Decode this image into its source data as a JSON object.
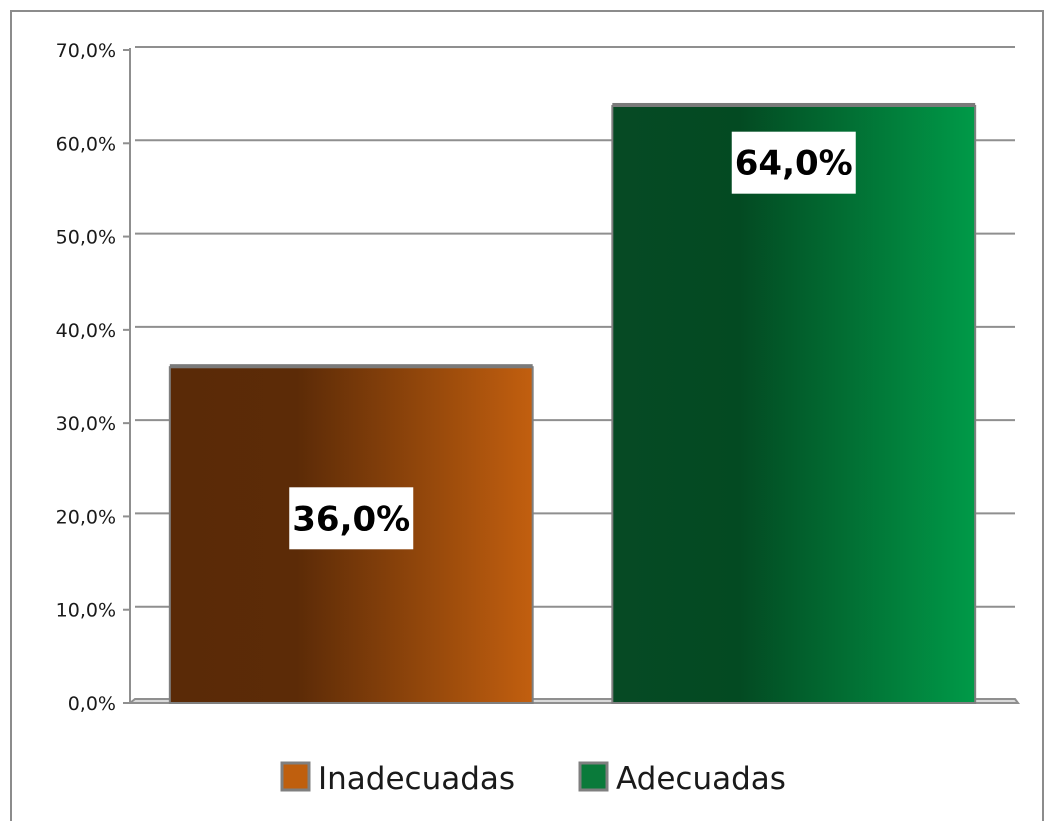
{
  "chart_data": {
    "type": "bar",
    "categories": [
      "Inadecuadas",
      "Adecuadas"
    ],
    "values": [
      36.0,
      64.0
    ],
    "value_labels": [
      "36,0%",
      "64,0%"
    ],
    "colors": [
      "#bf5f0e",
      "#0a7a3a"
    ],
    "ylim": [
      0,
      70
    ],
    "yticks": [
      0,
      10,
      20,
      30,
      40,
      50,
      60,
      70
    ],
    "ytick_labels": [
      "0,0%",
      "10,0%",
      "20,0%",
      "30,0%",
      "40,0%",
      "50,0%",
      "60,0%",
      "70,0%"
    ],
    "title": "",
    "xlabel": "",
    "ylabel": "",
    "grid": true,
    "legend_position": "bottom",
    "legend": [
      "Inadecuadas",
      "Adecuadas"
    ]
  }
}
